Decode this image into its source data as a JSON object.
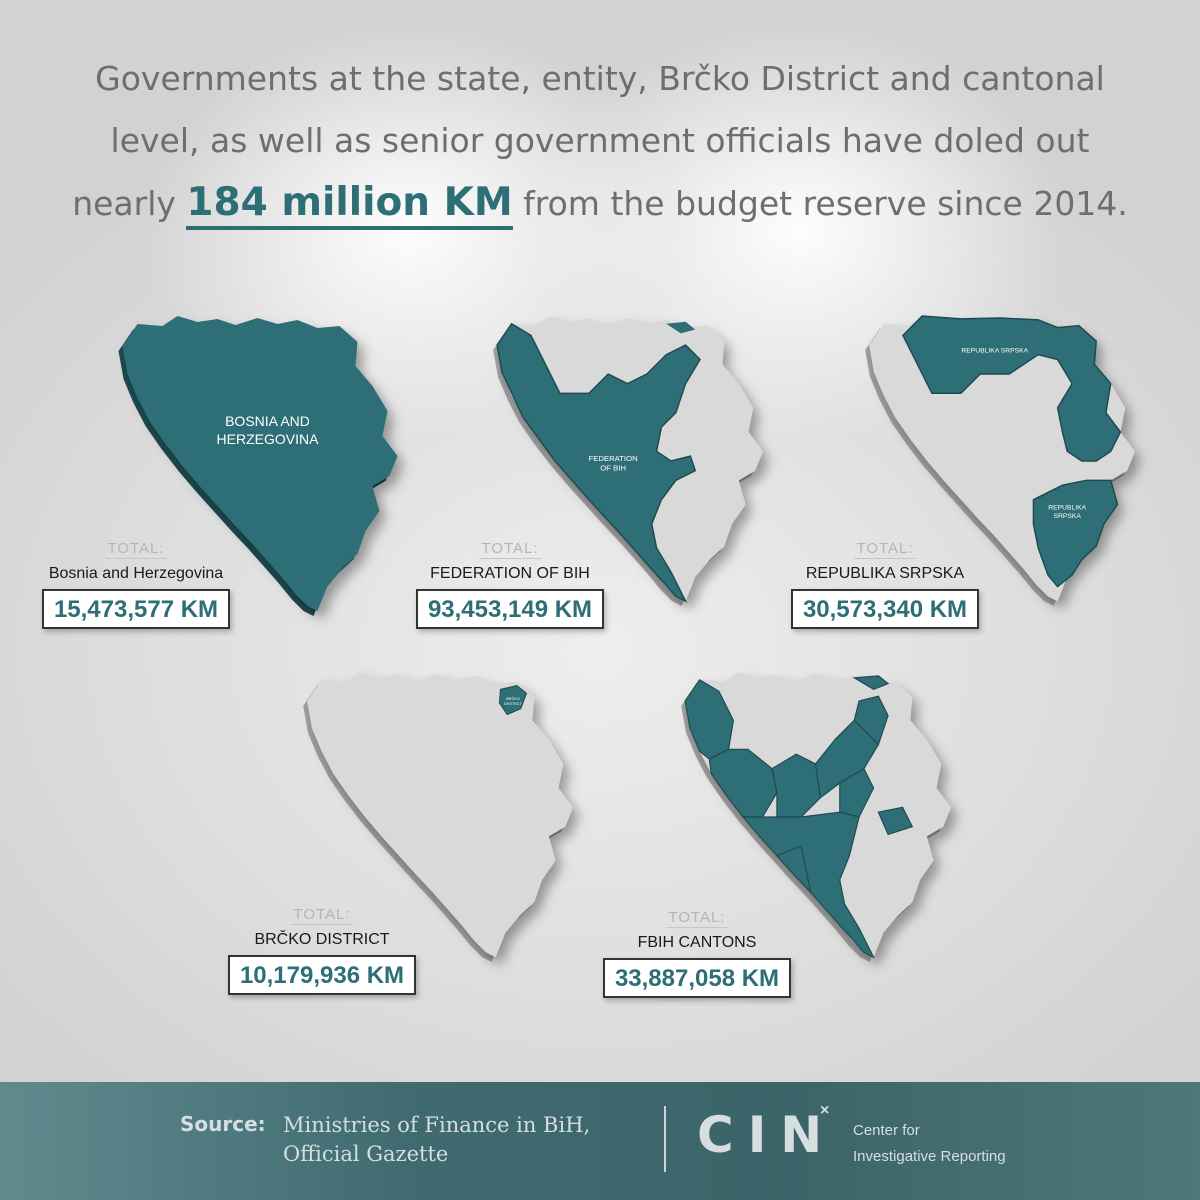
{
  "headline": {
    "line1": "Governments at the state, entity, Brčko District and cantonal",
    "line2": "level, as well as senior government officials have doled out",
    "line3_before": "nearly ",
    "highlight": "184 million KM",
    "line3_after": " from the budget reserve since 2014."
  },
  "maps": {
    "bih": {
      "map_label_1": "BOSNIA AND",
      "map_label_2": "HERZEGOVINA",
      "total_label": "TOTAL:",
      "name": "Bosnia and Herzegovina",
      "amount": "15,473,577 KM"
    },
    "fbih": {
      "map_label_1": "FEDERATION",
      "map_label_2": "OF BIH",
      "total_label": "TOTAL:",
      "name": "FEDERATION OF BIH",
      "amount": "93,453,149 KM"
    },
    "rs": {
      "map_label_north": "REPUBLIKA SRPSKA",
      "map_label_south_1": "REPUBLIKA",
      "map_label_south_2": "SRPSKA",
      "total_label": "TOTAL:",
      "name": "REPUBLIKA SRPSKA",
      "amount": "30,573,340 KM"
    },
    "brcko": {
      "map_label_1": "BRČKO",
      "map_label_2": "DISTRICT",
      "total_label": "TOTAL:",
      "name": "BRČKO DISTRICT",
      "amount": "10,179,936 KM"
    },
    "cantons": {
      "total_label": "TOTAL:",
      "name": "FBIH CANTONS",
      "amount": "33,887,058 KM"
    }
  },
  "footer": {
    "source_label": "Source:",
    "source_line1": "Ministries of Finance in BiH,",
    "source_line2": "Official Gazette",
    "logo_text": "CIN",
    "logo_mark": "×",
    "org_line1": "Center for",
    "org_line2": "Investigative Reporting"
  },
  "colors": {
    "teal": "#2e6e76",
    "map_gray": "#d9d9d9",
    "footer": "#3f6b70",
    "text_gray": "#6e6e6e"
  }
}
